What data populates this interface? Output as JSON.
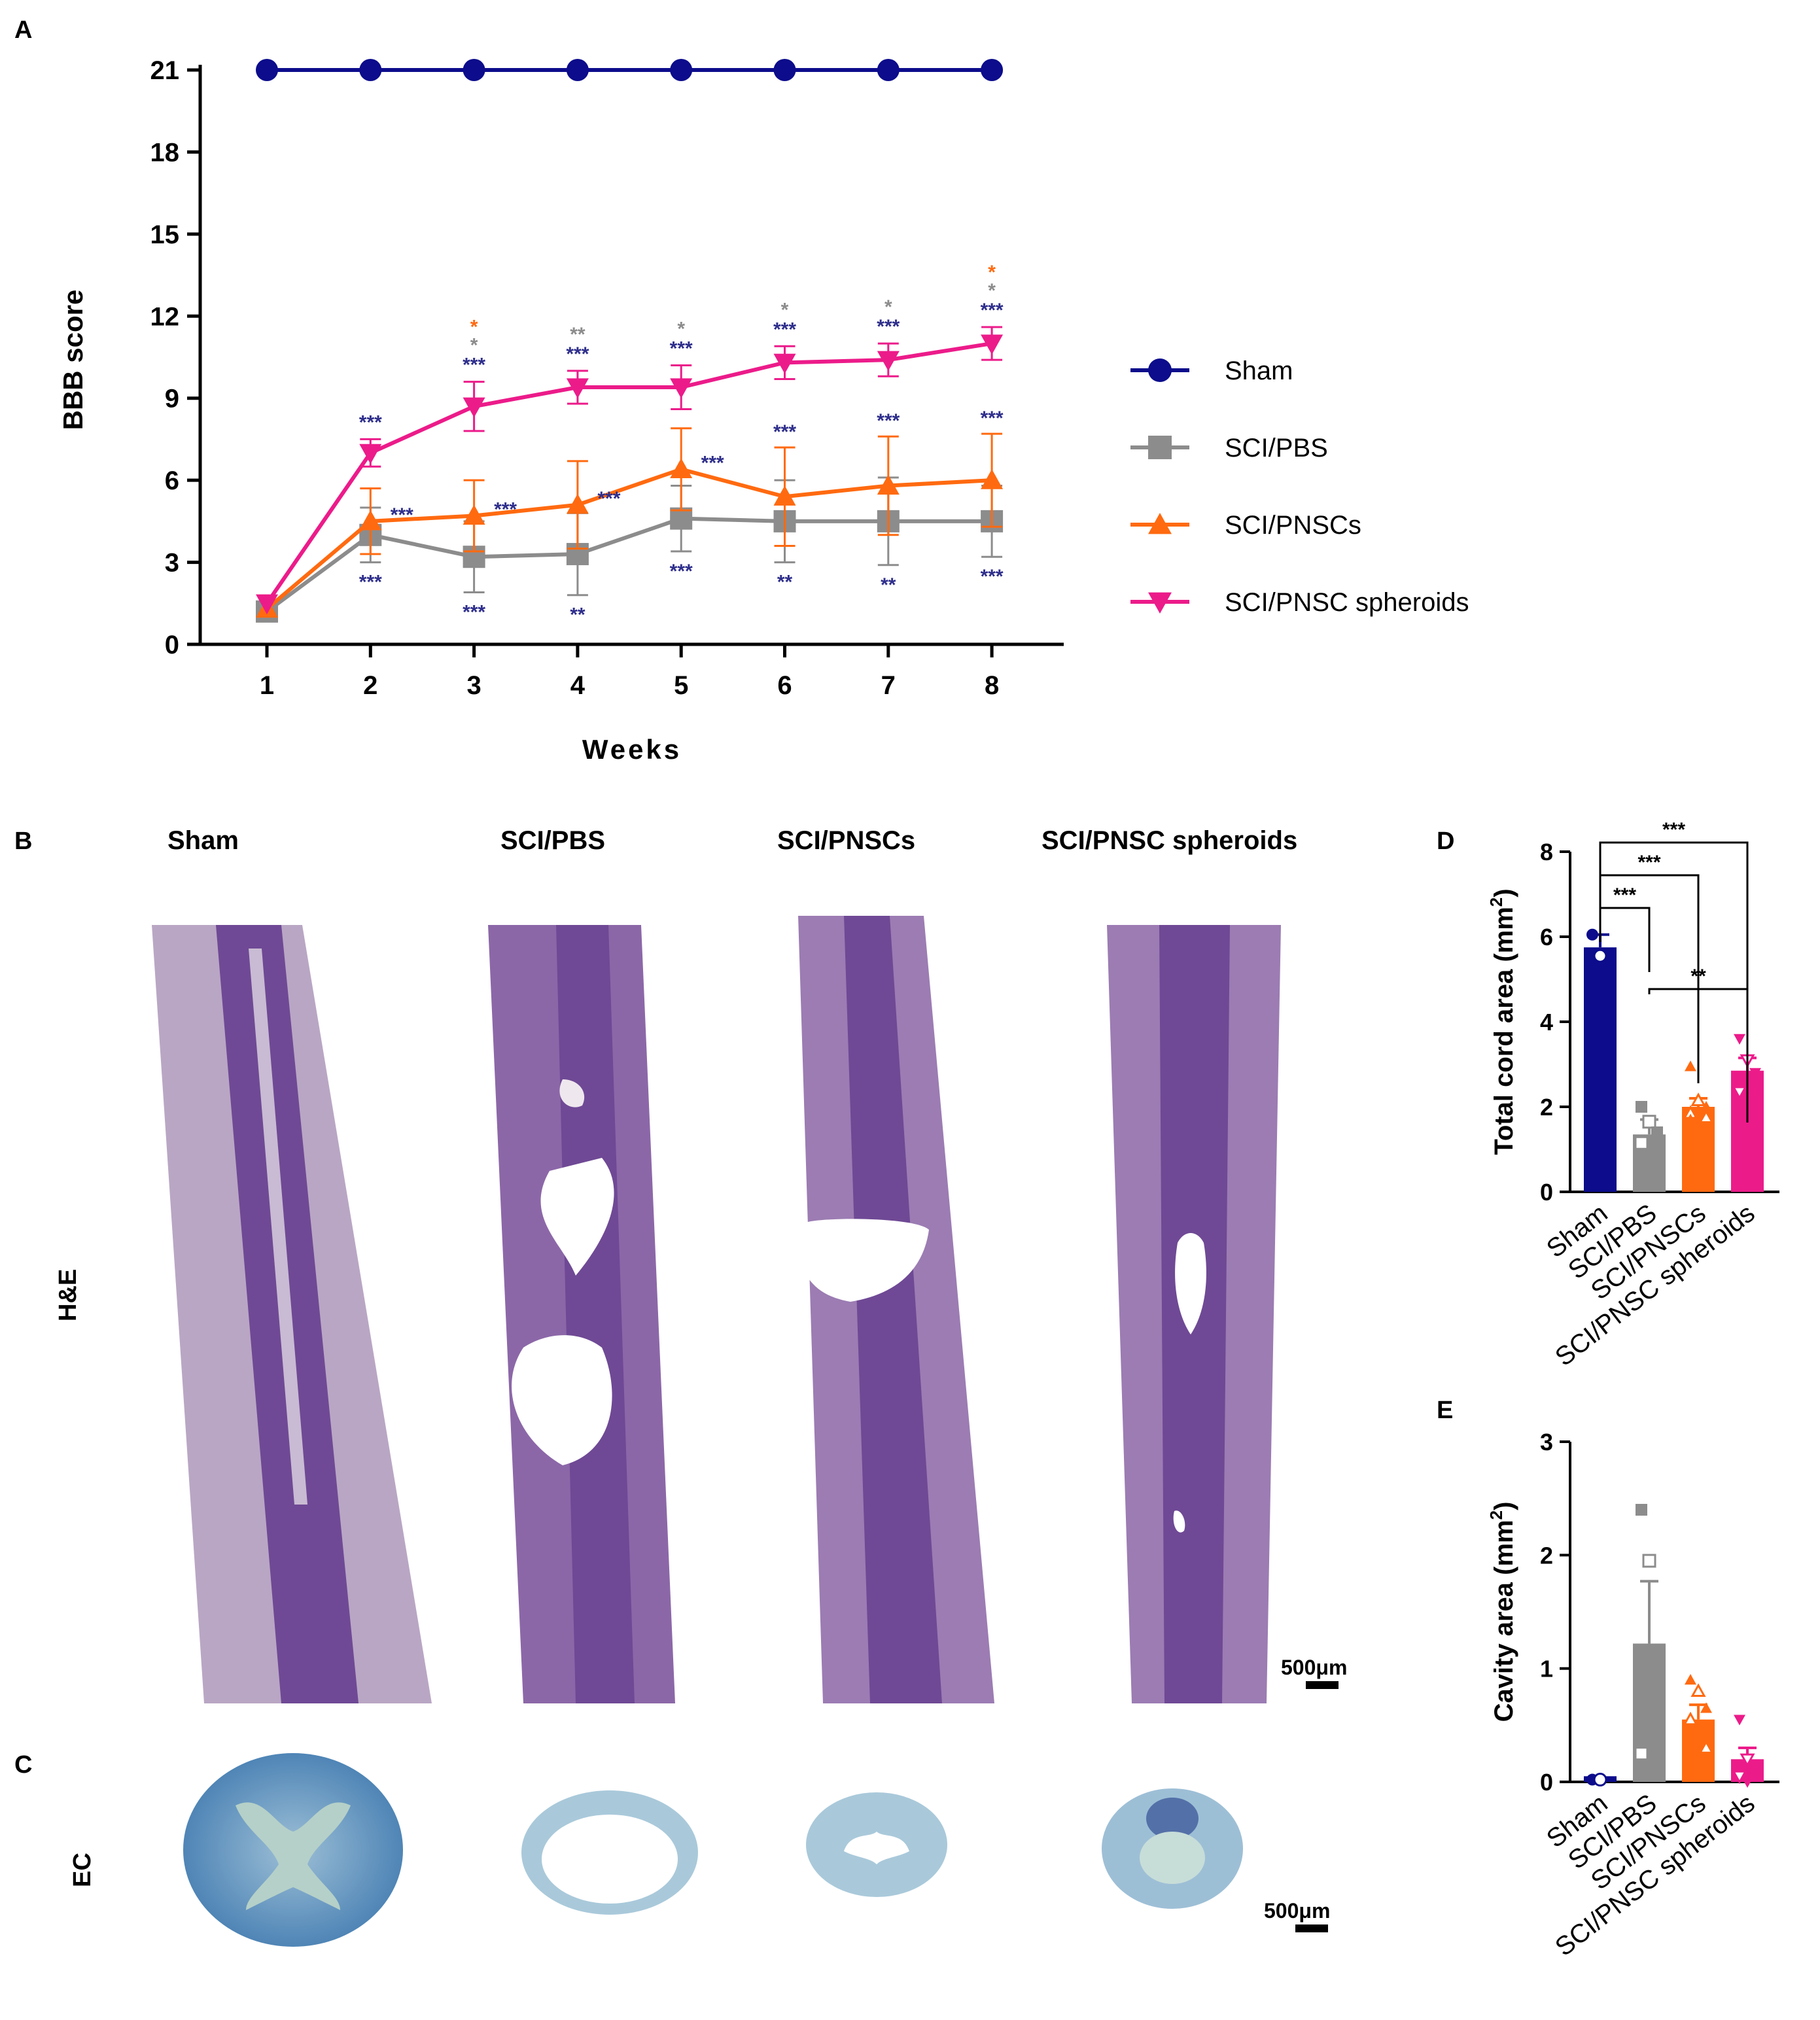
{
  "panel_labels": {
    "a": "A",
    "b": "B",
    "c": "C",
    "d": "D",
    "e": "E"
  },
  "colors": {
    "sham": "#0c0c8c",
    "pbs": "#8c8c8c",
    "pnsc": "#ff6a10",
    "spheroid": "#ec1b8a",
    "star_blue": "#2e2e8c"
  },
  "chart_data": [
    {
      "panel": "A",
      "type": "line",
      "title": "",
      "xlabel": "Weeks",
      "ylabel": "BBB score",
      "x": [
        1,
        2,
        3,
        4,
        5,
        6,
        7,
        8
      ],
      "ylim": [
        0,
        21
      ],
      "yticks": [
        0,
        3,
        6,
        9,
        12,
        15,
        18,
        21
      ],
      "xticks": [
        1,
        2,
        3,
        4,
        5,
        6,
        7,
        8
      ],
      "legend": "right",
      "series": [
        {
          "name": "Sham",
          "marker": "circle",
          "color": "#0c0c8c",
          "values": [
            21,
            21,
            21,
            21,
            21,
            21,
            21,
            21
          ],
          "err": [
            0,
            0,
            0,
            0,
            0,
            0,
            0,
            0
          ]
        },
        {
          "name": "SCI/PBS",
          "marker": "square",
          "color": "#8c8c8c",
          "values": [
            1.2,
            4.0,
            3.2,
            3.3,
            4.6,
            4.5,
            4.5,
            4.5
          ],
          "err": [
            0,
            1.0,
            1.3,
            1.5,
            1.2,
            1.5,
            1.6,
            1.3
          ]
        },
        {
          "name": "SCI/PNSCs",
          "marker": "triangle-up",
          "color": "#ff6a10",
          "values": [
            1.3,
            4.5,
            4.7,
            5.1,
            6.4,
            5.4,
            5.8,
            6.0
          ],
          "err": [
            0,
            1.2,
            1.3,
            1.6,
            1.5,
            1.8,
            1.8,
            1.7
          ]
        },
        {
          "name": "SCI/PNSC spheroids",
          "marker": "triangle-down",
          "color": "#ec1b8a",
          "values": [
            1.5,
            7.0,
            8.7,
            9.4,
            9.4,
            10.3,
            10.4,
            11.0
          ],
          "err": [
            0,
            0.5,
            0.9,
            0.6,
            0.8,
            0.6,
            0.6,
            0.6
          ]
        }
      ],
      "annotations": [
        {
          "x": 2,
          "text": "***",
          "color": "#2e2e8c",
          "near": "spheroid-above"
        },
        {
          "x": 2,
          "text": "***",
          "color": "#2e2e8c",
          "near": "pnsc-right"
        },
        {
          "x": 2,
          "text": "***",
          "color": "#2e2e8c",
          "near": "pbs-below"
        },
        {
          "x": 3,
          "text": "*",
          "color": "#ff6a10",
          "near": "spheroid-above-3"
        },
        {
          "x": 3,
          "text": "*",
          "color": "#8c8c8c",
          "near": "spheroid-above-2"
        },
        {
          "x": 3,
          "text": "***",
          "color": "#2e2e8c",
          "near": "spheroid-above"
        },
        {
          "x": 3,
          "text": "***",
          "color": "#2e2e8c",
          "near": "pnsc-right"
        },
        {
          "x": 3,
          "text": "***",
          "color": "#2e2e8c",
          "near": "pbs-below"
        },
        {
          "x": 4,
          "text": "**",
          "color": "#8c8c8c",
          "near": "spheroid-above-2"
        },
        {
          "x": 4,
          "text": "***",
          "color": "#2e2e8c",
          "near": "spheroid-above"
        },
        {
          "x": 4,
          "text": "***",
          "color": "#2e2e8c",
          "near": "pnsc-right"
        },
        {
          "x": 4,
          "text": "**",
          "color": "#2e2e8c",
          "near": "pbs-below"
        },
        {
          "x": 5,
          "text": "*",
          "color": "#8c8c8c",
          "near": "spheroid-above-2"
        },
        {
          "x": 5,
          "text": "***",
          "color": "#2e2e8c",
          "near": "spheroid-above"
        },
        {
          "x": 5,
          "text": "***",
          "color": "#2e2e8c",
          "near": "pnsc-right"
        },
        {
          "x": 5,
          "text": "***",
          "color": "#2e2e8c",
          "near": "pbs-below"
        },
        {
          "x": 6,
          "text": "*",
          "color": "#8c8c8c",
          "near": "spheroid-above-2"
        },
        {
          "x": 6,
          "text": "***",
          "color": "#2e2e8c",
          "near": "spheroid-above"
        },
        {
          "x": 6,
          "text": "***",
          "color": "#2e2e8c",
          "near": "pnsc-above"
        },
        {
          "x": 6,
          "text": "**",
          "color": "#2e2e8c",
          "near": "pbs-below"
        },
        {
          "x": 7,
          "text": "*",
          "color": "#8c8c8c",
          "near": "spheroid-above-2"
        },
        {
          "x": 7,
          "text": "***",
          "color": "#2e2e8c",
          "near": "spheroid-above"
        },
        {
          "x": 7,
          "text": "***",
          "color": "#2e2e8c",
          "near": "pnsc-above"
        },
        {
          "x": 7,
          "text": "**",
          "color": "#2e2e8c",
          "near": "pbs-below"
        },
        {
          "x": 8,
          "text": "*",
          "color": "#ff6a10",
          "near": "spheroid-above-3"
        },
        {
          "x": 8,
          "text": "*",
          "color": "#8c8c8c",
          "near": "spheroid-above-2"
        },
        {
          "x": 8,
          "text": "***",
          "color": "#2e2e8c",
          "near": "spheroid-above"
        },
        {
          "x": 8,
          "text": "***",
          "color": "#2e2e8c",
          "near": "pnsc-above"
        },
        {
          "x": 8,
          "text": "***",
          "color": "#2e2e8c",
          "near": "pbs-below"
        }
      ]
    },
    {
      "panel": "D",
      "type": "bar",
      "ylabel": "Total cord area (mm",
      "ylabel_sup": "2",
      "ylabel_close": ")",
      "ylim": [
        0,
        8
      ],
      "yticks": [
        0,
        2,
        4,
        6,
        8
      ],
      "categories": [
        "Sham",
        "SCI/PBS",
        "SCI/PNSCs",
        "SCI/PNSC spheroids"
      ],
      "values": [
        5.75,
        1.35,
        2.0,
        2.85
      ],
      "err": [
        0.3,
        0.35,
        0.2,
        0.3
      ],
      "points": [
        [
          6.05,
          5.55
        ],
        [
          2.0,
          1.65,
          1.4,
          1.15,
          0.75
        ],
        [
          2.95,
          2.15,
          2.0,
          1.85,
          1.8,
          1.75,
          1.7
        ],
        [
          3.6,
          3.1,
          2.8,
          2.35
        ]
      ],
      "brackets": [
        {
          "from": 0,
          "to": 3,
          "text": "***"
        },
        {
          "from": 0,
          "to": 2,
          "text": "***"
        },
        {
          "from": 0,
          "to": 1,
          "text": "***"
        },
        {
          "from": 1,
          "to": 3,
          "text": "**"
        }
      ]
    },
    {
      "panel": "E",
      "type": "bar",
      "ylabel": "Cavity area (mm",
      "ylabel_sup": "2",
      "ylabel_close": ")",
      "ylim": [
        0,
        3
      ],
      "yticks": [
        0,
        1,
        2,
        3
      ],
      "categories": [
        "Sham",
        "SCI/PBS",
        "SCI/PNSCs",
        "SCI/PNSC spheroids"
      ],
      "values": [
        0.05,
        1.22,
        0.55,
        0.2
      ],
      "err": [
        0,
        0.55,
        0.13,
        0.1
      ],
      "points": [
        [
          0.02,
          0.02
        ],
        [
          2.4,
          1.95,
          0.5,
          0.25
        ],
        [
          0.9,
          0.8,
          0.65,
          0.55,
          0.4,
          0.3,
          0.05
        ],
        [
          0.55,
          0.2,
          0.05,
          0.05,
          0.0
        ]
      ]
    }
  ],
  "histology": {
    "column_titles": [
      "Sham",
      "SCI/PBS",
      "SCI/PNSCs",
      "SCI/PNSC spheroids"
    ],
    "row_he": "H&E",
    "row_ec": "EC",
    "scale_b": "500μm",
    "scale_c": "500μm"
  }
}
